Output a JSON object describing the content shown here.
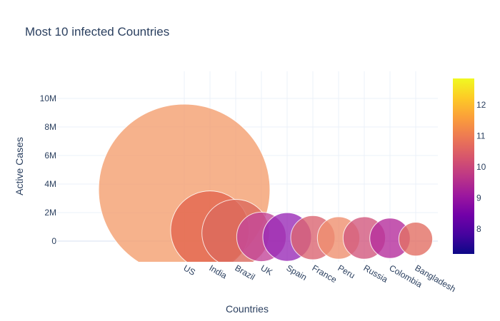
{
  "chart_data": {
    "type": "scatter",
    "title": "Most 10 infected Countries",
    "xlabel": "Countries",
    "ylabel": "Active Cases",
    "categories": [
      "US",
      "India",
      "Brazil",
      "UK",
      "Spain",
      "France",
      "Peru",
      "Russia",
      "Colombia",
      "Bangladesh"
    ],
    "values": [
      3600000,
      760000,
      560000,
      300000,
      290000,
      240000,
      220000,
      220000,
      200000,
      140000
    ],
    "colors": [
      "#f4a070",
      "#e4674f",
      "#dc6a5d",
      "#c4479a",
      "#9a2cb8",
      "#dc6672",
      "#f09070",
      "#d35a7f",
      "#b62f9d",
      "#e37065"
    ],
    "y_ticks": [
      {
        "value": 10000000,
        "label": "10M"
      },
      {
        "value": 8000000,
        "label": "8M"
      },
      {
        "value": 6000000,
        "label": "6M"
      },
      {
        "value": 4000000,
        "label": "4M"
      },
      {
        "value": 2000000,
        "label": "2M"
      },
      {
        "value": 0,
        "label": "0"
      }
    ],
    "ylim": [
      -1450000,
      11900000
    ],
    "grid": true,
    "marker_size_by": "active cases",
    "colorbar": {
      "colorscale": "plasma",
      "range": [
        7.2,
        12.85
      ],
      "ticks": [
        {
          "value": 8,
          "label": "8"
        },
        {
          "value": 9,
          "label": "9"
        },
        {
          "value": 10,
          "label": "10"
        },
        {
          "value": 11,
          "label": "11"
        },
        {
          "value": 12,
          "label": "12"
        }
      ],
      "stops": [
        "#0d0887",
        "#46039f",
        "#7201a8",
        "#9c179e",
        "#bd3786",
        "#d8576b",
        "#ed7953",
        "#fb9f3a",
        "#fdca26",
        "#f0f921"
      ]
    }
  }
}
